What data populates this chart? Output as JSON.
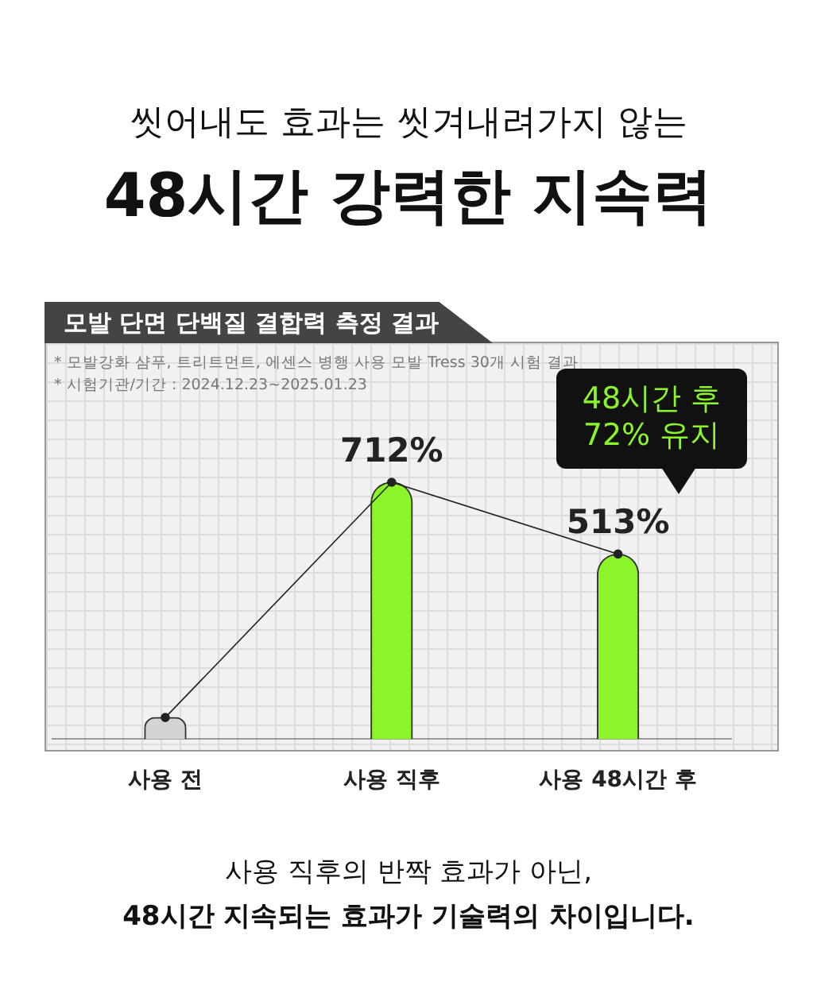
{
  "chart_data": {
    "type": "bar",
    "title": "48시간 강력한 지속력",
    "subtitle": "씻어내도 효과는 씻겨내려가지 않는",
    "categories": [
      "사용 전",
      "사용 직후",
      "사용 48시간 후"
    ],
    "series": [
      {
        "colors": [
          "#d4d4d4",
          "#8cf529",
          "#8cf529"
        ],
        "values": [
          60,
          712,
          513
        ],
        "value_labels": [
          null,
          "712%",
          "513%"
        ]
      },
      {
        "type": "line",
        "color": "#222222",
        "marker": "circle",
        "values": [
          60,
          712,
          513
        ]
      }
    ],
    "tick_labels": "x",
    "grid": false,
    "legend": false,
    "annotations": [
      "모발 단면 단백질 결합력 측정 결과",
      "* 모발강화 샴푸, 트리트먼트, 에센스 병행 사용 모발 Tress 30개 시험 결과",
      "* 시험기관/기간 : 2024.12.23~2025.01.23",
      "48시간 후\n72% 유지",
      "사용 직후의 반짝 효과가 아닌,",
      "48시간 지속되는 효과가 기술력의 차이입니다."
    ]
  }
}
